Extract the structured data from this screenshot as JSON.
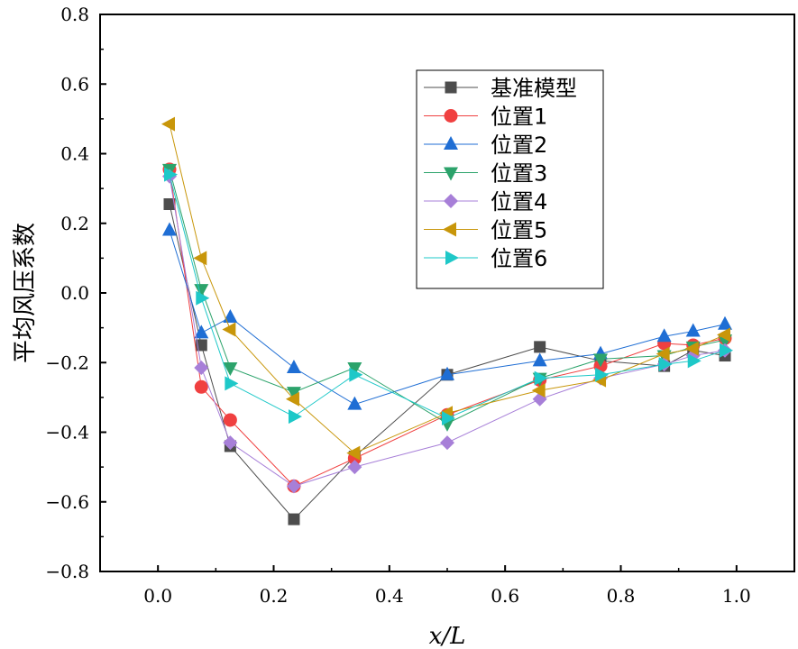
{
  "chart_data": {
    "type": "line",
    "xlabel": "x/L",
    "ylabel": "平均风压系数",
    "xlim": [
      -0.1,
      1.1
    ],
    "ylim": [
      -0.8,
      0.8
    ],
    "xticks": [
      0.0,
      0.2,
      0.4,
      0.6,
      0.8,
      1.0
    ],
    "yticks": [
      -0.8,
      -0.6,
      -0.4,
      -0.2,
      0.0,
      0.2,
      0.4,
      0.6,
      0.8
    ],
    "xtick_labels": [
      "0.0",
      "0.2",
      "0.4",
      "0.6",
      "0.8",
      "1.0"
    ],
    "ytick_labels": [
      "−0.8",
      "−0.6",
      "−0.4",
      "−0.2",
      "0.0",
      "0.2",
      "0.4",
      "0.6",
      "0.8"
    ],
    "grid": false,
    "legend_position": "top-right",
    "series": [
      {
        "name": "基准模型",
        "color": "#4d4d4d",
        "marker": "square",
        "x": [
          0.02,
          0.075,
          0.125,
          0.235,
          0.34,
          0.5,
          0.66,
          0.765,
          0.875,
          0.925,
          0.98
        ],
        "y": [
          0.255,
          -0.15,
          -0.44,
          -0.65,
          -0.47,
          -0.235,
          -0.155,
          -0.195,
          -0.21,
          -0.165,
          -0.18
        ]
      },
      {
        "name": "位置1",
        "color": "#f04040",
        "marker": "circle",
        "x": [
          0.02,
          0.075,
          0.125,
          0.235,
          0.34,
          0.5,
          0.66,
          0.765,
          0.875,
          0.925,
          0.98
        ],
        "y": [
          0.355,
          -0.27,
          -0.365,
          -0.555,
          -0.475,
          -0.35,
          -0.25,
          -0.21,
          -0.145,
          -0.15,
          -0.13
        ]
      },
      {
        "name": "位置2",
        "color": "#1f6ed4",
        "marker": "triangle-up",
        "x": [
          0.02,
          0.075,
          0.125,
          0.235,
          0.34,
          0.5,
          0.66,
          0.765,
          0.875,
          0.925,
          0.98
        ],
        "y": [
          0.18,
          -0.115,
          -0.07,
          -0.215,
          -0.32,
          -0.235,
          -0.195,
          -0.175,
          -0.125,
          -0.11,
          -0.09
        ]
      },
      {
        "name": "位置3",
        "color": "#2ca36b",
        "marker": "triangle-down",
        "x": [
          0.02,
          0.075,
          0.125,
          0.235,
          0.34,
          0.5,
          0.66,
          0.765,
          0.875,
          0.925,
          0.98
        ],
        "y": [
          0.355,
          0.01,
          -0.215,
          -0.285,
          -0.215,
          -0.375,
          -0.245,
          -0.19,
          -0.18,
          -0.155,
          -0.135
        ]
      },
      {
        "name": "位置4",
        "color": "#a77fd8",
        "marker": "diamond",
        "x": [
          0.02,
          0.075,
          0.125,
          0.235,
          0.34,
          0.5,
          0.66,
          0.765,
          0.875,
          0.925,
          0.98
        ],
        "y": [
          0.335,
          -0.215,
          -0.43,
          -0.555,
          -0.5,
          -0.43,
          -0.305,
          -0.245,
          -0.205,
          -0.18,
          -0.165
        ]
      },
      {
        "name": "位置5",
        "color": "#c8960a",
        "marker": "triangle-left",
        "x": [
          0.02,
          0.075,
          0.125,
          0.235,
          0.34,
          0.5,
          0.66,
          0.765,
          0.875,
          0.925,
          0.98
        ],
        "y": [
          0.485,
          0.1,
          -0.105,
          -0.305,
          -0.46,
          -0.345,
          -0.28,
          -0.25,
          -0.175,
          -0.16,
          -0.12
        ]
      },
      {
        "name": "位置6",
        "color": "#1ec8c8",
        "marker": "triangle-right",
        "x": [
          0.02,
          0.075,
          0.125,
          0.235,
          0.34,
          0.5,
          0.66,
          0.765,
          0.875,
          0.925,
          0.98
        ],
        "y": [
          0.34,
          -0.015,
          -0.26,
          -0.355,
          -0.235,
          -0.36,
          -0.245,
          -0.235,
          -0.205,
          -0.195,
          -0.165
        ]
      }
    ]
  }
}
